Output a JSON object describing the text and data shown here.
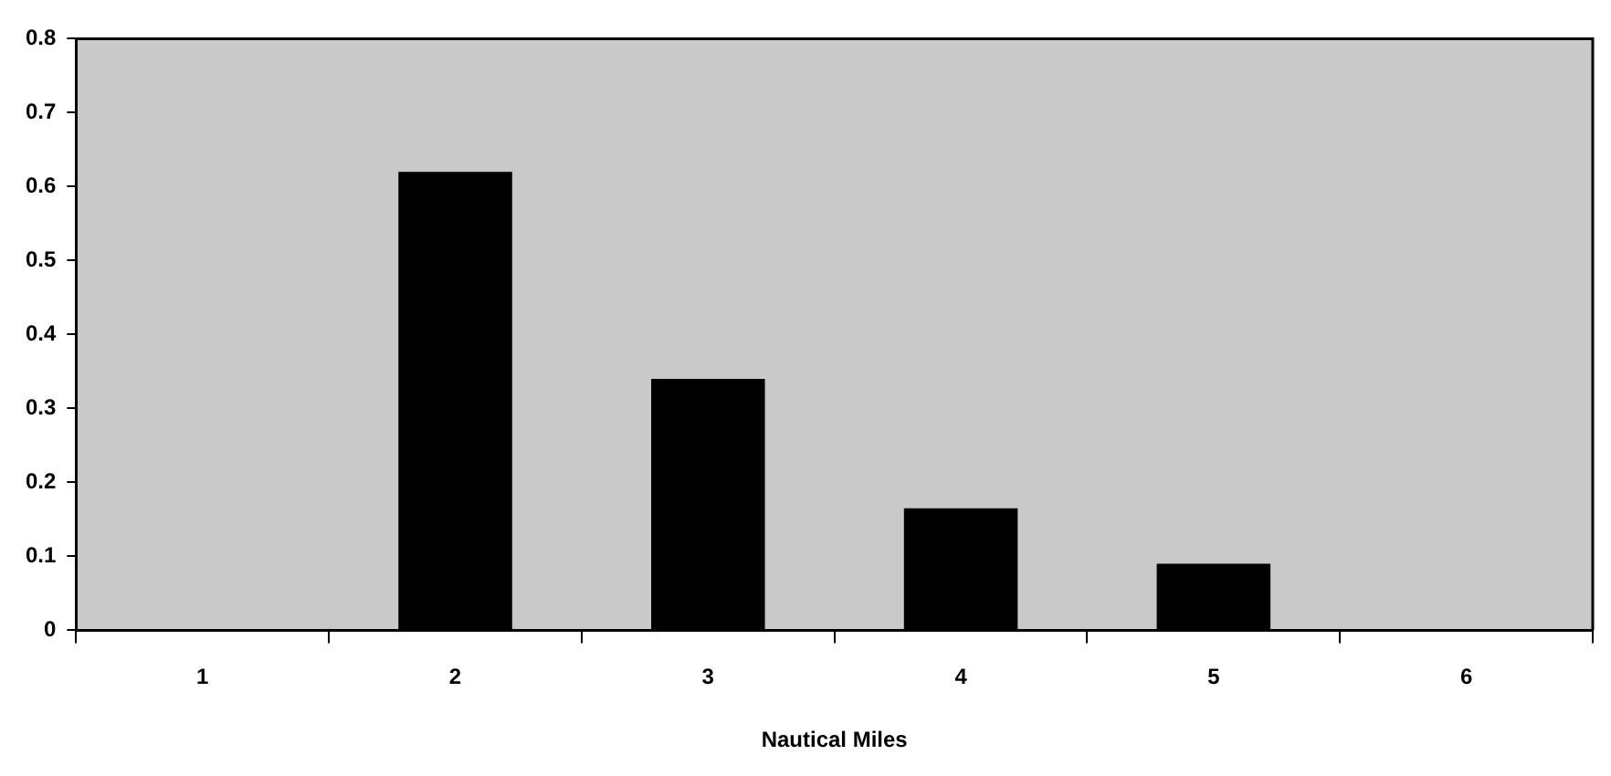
{
  "chart_data": {
    "type": "bar",
    "xlabel": "Nautical Miles",
    "categories": [
      "1",
      "2",
      "3",
      "4",
      "5",
      "6"
    ],
    "values": [
      0,
      0.62,
      0.34,
      0.165,
      0.09,
      0
    ],
    "color": "#000000",
    "ylim": [
      0,
      0.8
    ],
    "yticks": [
      0,
      0.1,
      0.2,
      0.3,
      0.4,
      0.5,
      0.6,
      0.7,
      0.8
    ],
    "grid": false,
    "legend": false
  }
}
